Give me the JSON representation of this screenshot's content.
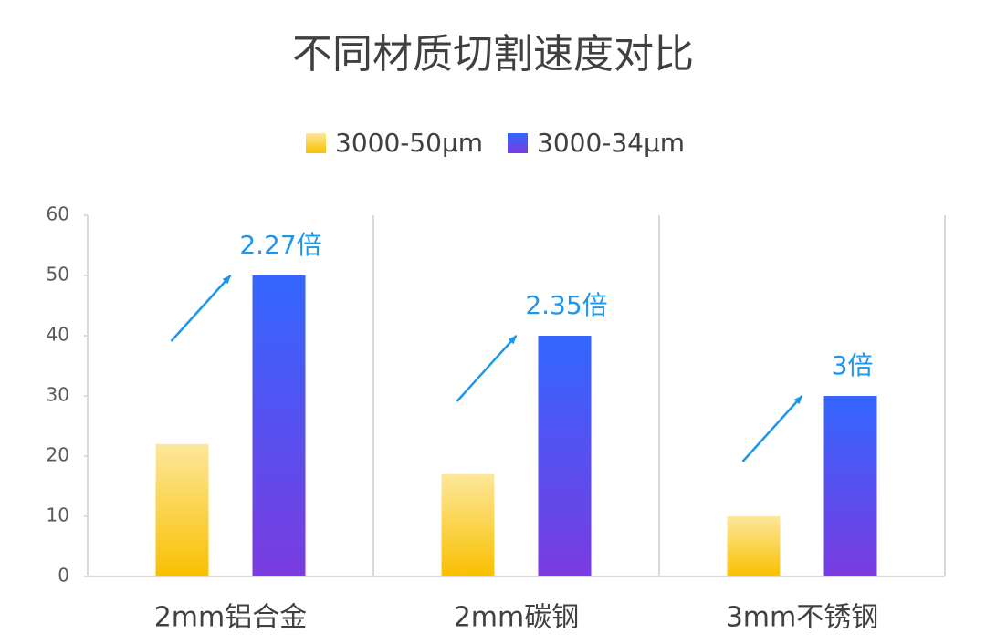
{
  "chart_data": {
    "type": "bar",
    "title": "不同材质切割速度对比",
    "categories": [
      "2mm铝合金",
      "2mm碳钢",
      "3mm不锈钢"
    ],
    "series": [
      {
        "name": "3000-50μm",
        "colors": [
          "#fde79a",
          "#f9c000"
        ],
        "values": [
          22,
          17,
          10
        ]
      },
      {
        "name": "3000-34μm",
        "colors": [
          "#3366ff",
          "#7a3be0"
        ],
        "values": [
          50,
          40,
          30
        ]
      }
    ],
    "annotations": [
      "2.27倍",
      "2.35倍",
      "3倍"
    ],
    "annotation_color": "#1e96ea",
    "ylim": [
      0,
      60
    ],
    "yticks": [
      0,
      10,
      20,
      30,
      40,
      50,
      60
    ],
    "legend": "top"
  }
}
